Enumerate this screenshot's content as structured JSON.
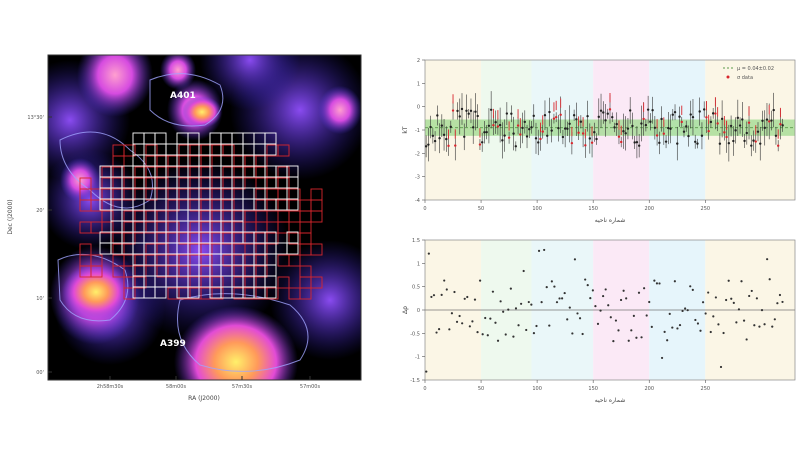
{
  "chart_data": [
    {
      "type": "image",
      "labels": {
        "cluster_top": "A401",
        "cluster_bottom": "A399"
      },
      "axes": {
        "xlabel": "RA (J2000)",
        "ylabel": "Dec (J2000)",
        "xticks": [
          "2h58m30s",
          "58m00s",
          "57m30s",
          "57m00s"
        ],
        "yticks": [
          "13°30'",
          "20'",
          "10'",
          "00'"
        ]
      },
      "colors": {
        "background": "#000000",
        "grid_white": "#ffffff",
        "grid_red": "#d8262d",
        "contour": "#a0a4ff"
      }
    },
    {
      "type": "scatter",
      "xlabel": "شماره ناحیه",
      "ylabel": "kT",
      "xlim": [
        0,
        330
      ],
      "ylim": [
        -4,
        2
      ],
      "xticks": [
        0,
        50,
        100,
        150,
        200,
        250
      ],
      "yticks": [
        -4,
        -3,
        -2,
        -1,
        0,
        1,
        2
      ],
      "legend": [
        "μ = 0.04±0.02",
        "σ data"
      ],
      "legend_position": "top-right",
      "band_center": -0.9,
      "band_halfwidth": 0.35,
      "background_bands": [
        {
          "from": 0,
          "to": 50,
          "color": "#fbf6e6"
        },
        {
          "from": 50,
          "to": 95,
          "color": "#eef9ee"
        },
        {
          "from": 95,
          "to": 150,
          "color": "#eaf7f9"
        },
        {
          "from": 150,
          "to": 200,
          "color": "#fbe9f6"
        },
        {
          "from": 200,
          "to": 250,
          "color": "#e6f5fb"
        },
        {
          "from": 250,
          "to": 330,
          "color": "#fbf6e6"
        }
      ],
      "series_seed": 11,
      "n_points": 160
    },
    {
      "type": "scatter",
      "xlabel": "شماره ناحیه",
      "ylabel": "Δρ",
      "xlim": [
        0,
        330
      ],
      "ylim": [
        -1.5,
        1.5
      ],
      "xticks": [
        0,
        50,
        100,
        150,
        200,
        250
      ],
      "yticks": [
        -1.5,
        -1.0,
        -0.5,
        0.0,
        0.5,
        1.0,
        1.5
      ],
      "zero_line": 0,
      "background_bands": [
        {
          "from": 0,
          "to": 50,
          "color": "#fbf6e6"
        },
        {
          "from": 50,
          "to": 95,
          "color": "#eef9ee"
        },
        {
          "from": 95,
          "to": 150,
          "color": "#eaf7f9"
        },
        {
          "from": 150,
          "to": 200,
          "color": "#fbe9f6"
        },
        {
          "from": 200,
          "to": 250,
          "color": "#e6f5fb"
        },
        {
          "from": 250,
          "to": 330,
          "color": "#fbf6e6"
        }
      ],
      "series_seed": 37,
      "n_points": 140
    }
  ]
}
